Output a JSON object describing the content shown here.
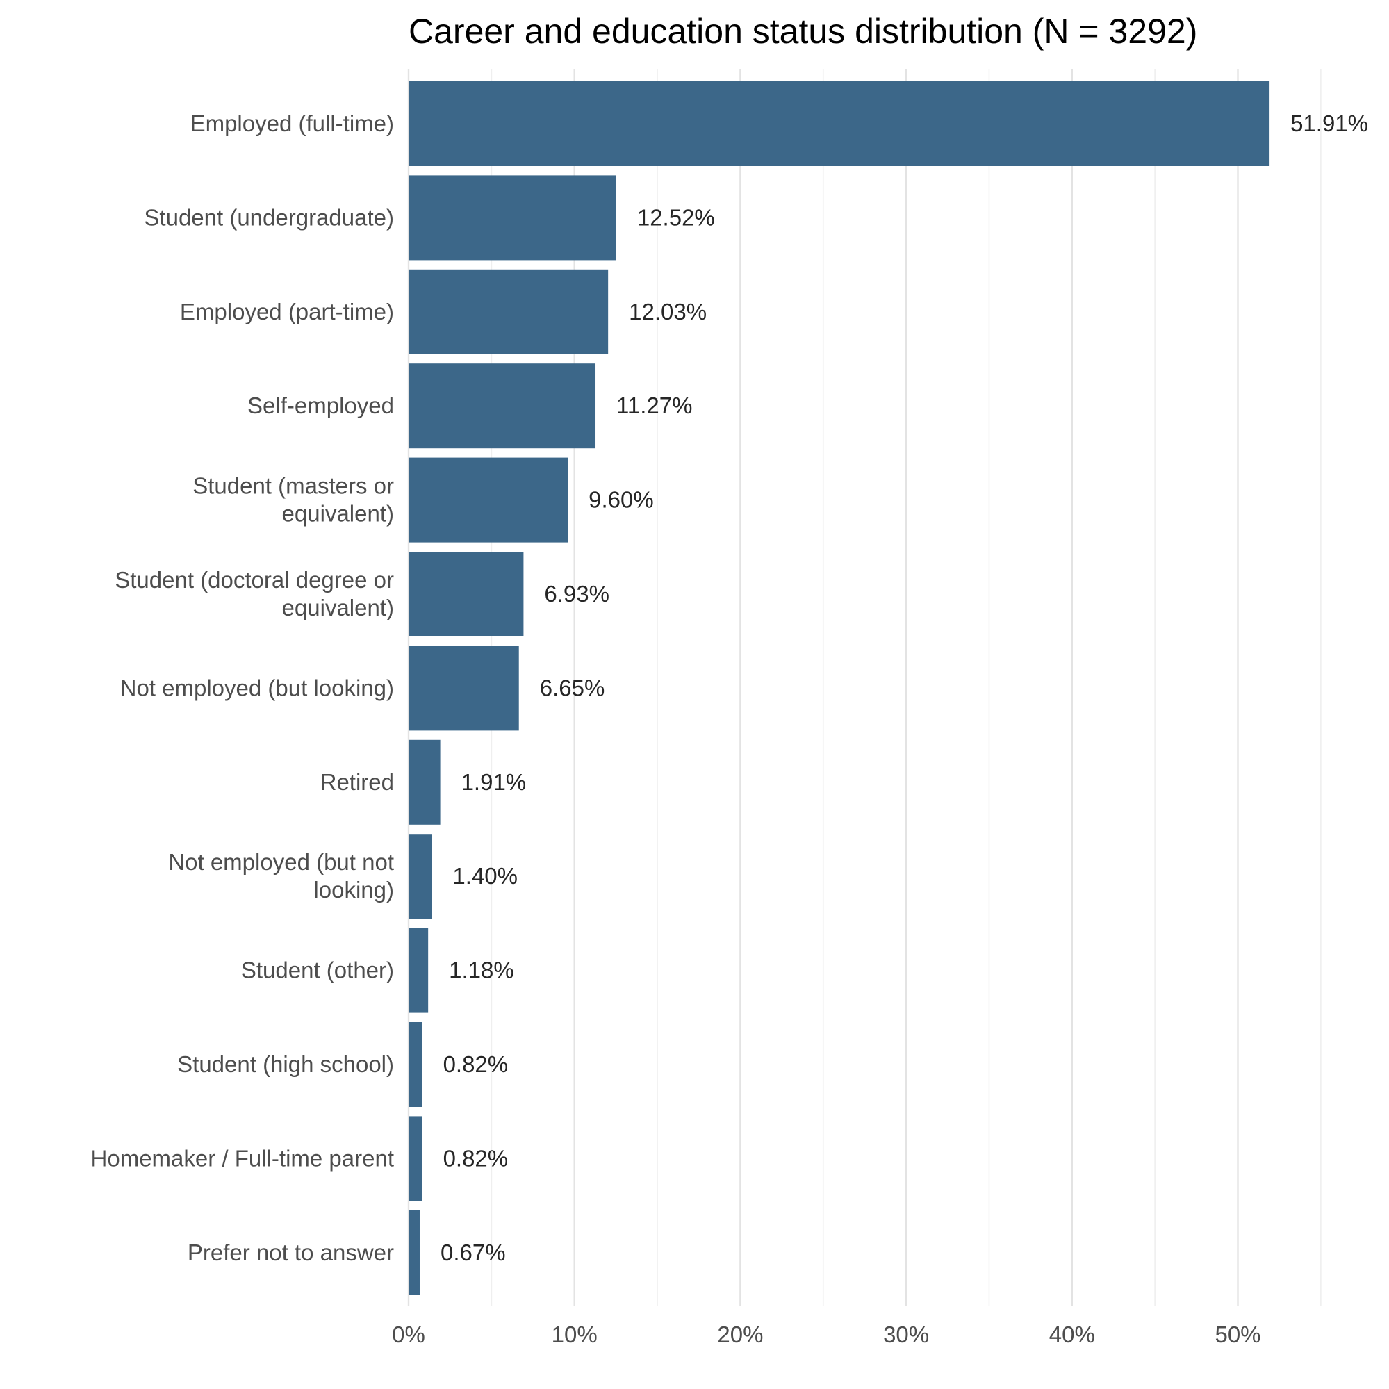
{
  "chart_data": {
    "type": "bar",
    "orientation": "horizontal",
    "title": "Career and education status distribution (N = 3292)",
    "xlabel": "",
    "ylabel": "",
    "xlim": [
      0,
      55
    ],
    "x_ticks": [
      0,
      10,
      20,
      30,
      40,
      50
    ],
    "x_tick_labels": [
      "0%",
      "10%",
      "20%",
      "30%",
      "40%",
      "50%"
    ],
    "grid": true,
    "legend": "none",
    "bar_color": "#3c6789",
    "categories": [
      [
        "Employed (full-time)"
      ],
      [
        "Student (undergraduate)"
      ],
      [
        "Employed (part-time)"
      ],
      [
        "Self-employed"
      ],
      [
        "Student (masters or",
        "equivalent)"
      ],
      [
        "Student (doctoral degree or",
        "equivalent)"
      ],
      [
        "Not employed (but looking)"
      ],
      [
        "Retired"
      ],
      [
        "Not employed (but not",
        "looking)"
      ],
      [
        "Student (other)"
      ],
      [
        "Student (high school)"
      ],
      [
        "Homemaker / Full-time parent"
      ],
      [
        "Prefer not to answer"
      ]
    ],
    "values": [
      51.91,
      12.52,
      12.03,
      11.27,
      9.6,
      6.93,
      6.65,
      1.91,
      1.4,
      1.18,
      0.82,
      0.82,
      0.67
    ],
    "value_labels": [
      "51.91%",
      "12.52%",
      "12.03%",
      "11.27%",
      "9.60%",
      "6.93%",
      "6.65%",
      "1.91%",
      "1.40%",
      "1.18%",
      "0.82%",
      "0.82%",
      "0.67%"
    ]
  }
}
